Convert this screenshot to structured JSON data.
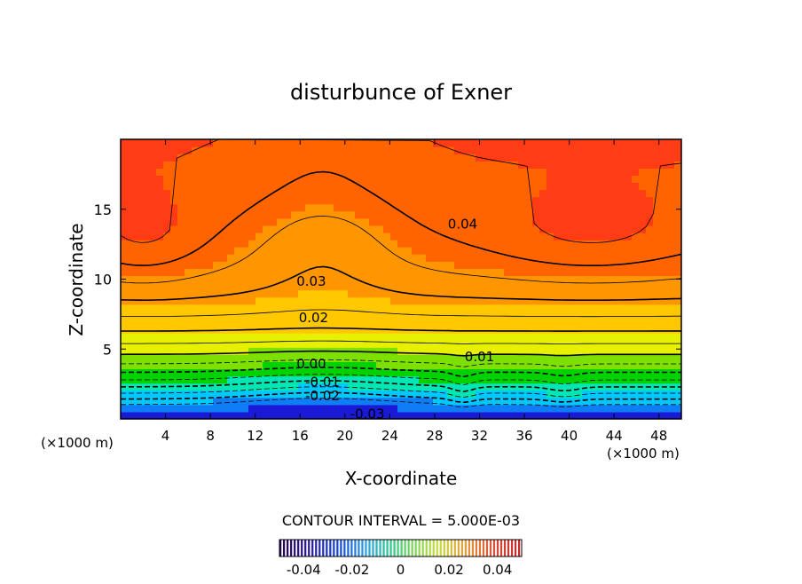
{
  "chart_data": {
    "type": "heatmap",
    "title": "disturbunce of Exner",
    "xlabel": "X-coordinate",
    "ylabel": "Z-coordinate",
    "x_unit_left": "(×1000 m)",
    "x_unit_right": "(×1000 m)",
    "xlim": [
      0,
      50
    ],
    "ylim": [
      0,
      20
    ],
    "x_ticks": [
      4,
      8,
      12,
      16,
      20,
      24,
      28,
      32,
      36,
      40,
      44,
      48
    ],
    "y_ticks": [
      5,
      10,
      15
    ],
    "contour_interval_text": "CONTOUR INTERVAL = 5.000E-03",
    "contour_labels": [
      {
        "text": "0.04",
        "x": 30.5,
        "z": 14.0
      },
      {
        "text": "0.03",
        "x": 17.0,
        "z": 9.9
      },
      {
        "text": "0.02",
        "x": 17.2,
        "z": 7.3
      },
      {
        "text": "0.01",
        "x": 32.0,
        "z": 4.5
      },
      {
        "text": "0.00",
        "x": 17.0,
        "z": 4.0
      },
      {
        "text": "-0.01",
        "x": 18.0,
        "z": 2.7
      },
      {
        "text": "-0.02",
        "x": 18.0,
        "z": 1.7
      },
      {
        "text": "-0.03",
        "x": 22.0,
        "z": 0.4
      }
    ],
    "colorbar": {
      "range": [
        -0.05,
        0.05
      ],
      "tick_values": [
        -0.04,
        -0.02,
        0,
        0.02,
        0.04
      ],
      "tick_labels": [
        "-0.04",
        "-0.02",
        "0",
        "0.02",
        "0.04"
      ]
    },
    "colors": [
      "#1a1ad6",
      "#0f7df5",
      "#00c8ff",
      "#00e6b4",
      "#00d200",
      "#7ee000",
      "#e6f000",
      "#ffc800",
      "#ff9600",
      "#ff6400",
      "#ff3c14",
      "#ff2828"
    ]
  }
}
